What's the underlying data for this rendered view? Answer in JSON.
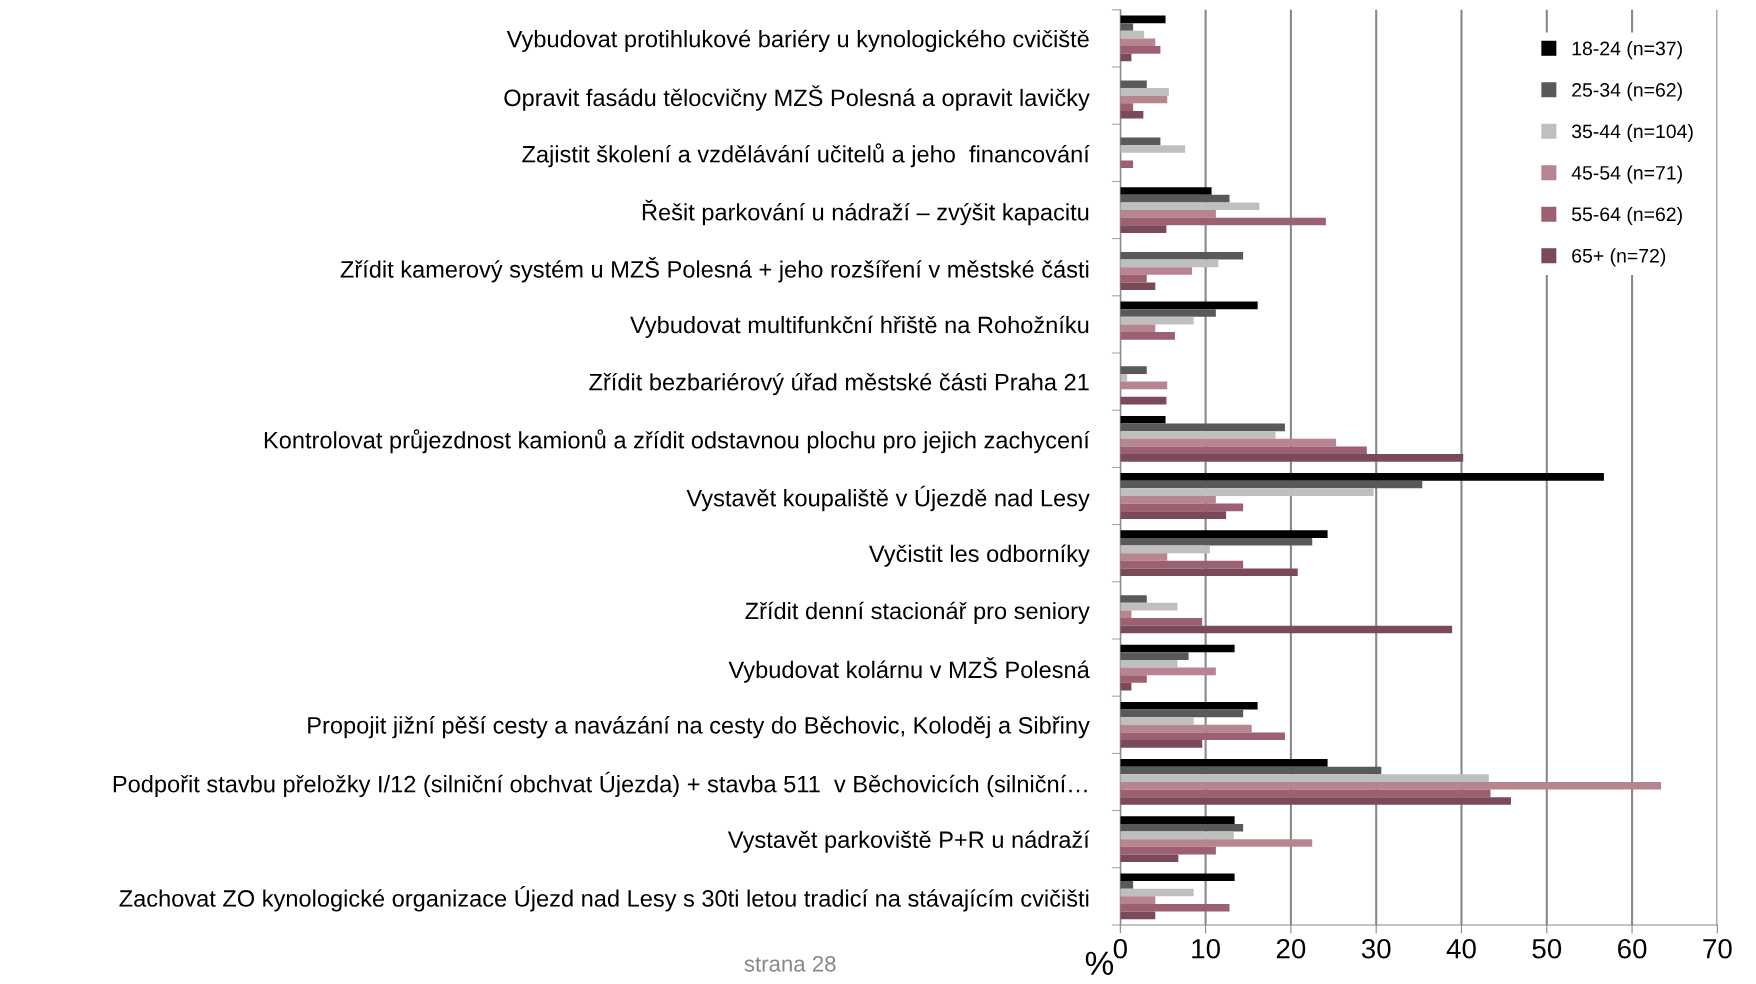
{
  "chart_data": {
    "type": "bar",
    "orientation": "horizontal",
    "xlabel": "%",
    "categories": [
      "Vybudovat protihlukové bariéry u kynologického cvičiště",
      "Opravit fasádu tělocvičny MZŠ Polesná a opravit lavičky",
      "Zajistit školení a vzdělávání učitelů a jeho  financování",
      "Řešit parkování u nádraží – zvýšit kapacitu",
      "Zřídit kamerový systém u MZŠ Polesná + jeho rozšíření v městské části",
      "Vybudovat multifunkční hřiště na Rohožníku",
      "Zřídit bezbariérový úřad městské části Praha 21",
      "Kontrolovat průjezdnost kamionů a zřídit odstavnou plochu pro jejich zachycení",
      "Vystavět koupaliště v Újezdě nad Lesy",
      "Vyčistit les odborníky",
      "Zřídit denní stacionář pro seniory",
      "Vybudovat kolárnu v MZŠ Polesná",
      "Propojit jižní pěší cesty a navázání na cesty do Běchovic, Koloděj a Sibřiny",
      "Podpořit stavbu přeložky I/12 (silniční obchvat Újezda) + stavba 511  v Běchovicích (silniční…",
      "Vystavět parkoviště P+R u nádraží",
      "Zachovat ZO kynologické organizace Újezd nad Lesy s 30ti letou tradicí na stávajícím cvičišti"
    ],
    "series": [
      {
        "name": "18-24 (n=37)",
        "color": "#000000",
        "values": [
          5.3,
          0,
          0,
          10.7,
          0,
          16.1,
          0,
          5.3,
          56.7,
          24.3,
          0,
          13.4,
          16.1,
          24.3,
          13.4,
          13.4
        ]
      },
      {
        "name": "25-34 (n=62)",
        "color": "#595959",
        "values": [
          1.5,
          3.1,
          4.7,
          12.8,
          14.4,
          11.2,
          3.1,
          19.3,
          35.4,
          22.5,
          3.1,
          8.0,
          14.4,
          30.6,
          14.4,
          1.5
        ]
      },
      {
        "name": "35-44 (n=104)",
        "color": "#bfbfbf",
        "values": [
          2.8,
          5.7,
          7.6,
          16.3,
          11.5,
          8.6,
          0.8,
          18.2,
          29.7,
          10.5,
          6.7,
          6.7,
          8.6,
          43.2,
          13.3,
          8.6
        ]
      },
      {
        "name": "45-54 (n=71)",
        "color": "#b7858f",
        "values": [
          4.1,
          5.5,
          0,
          11.2,
          8.4,
          4.1,
          5.5,
          25.3,
          11.2,
          5.5,
          1.3,
          11.2,
          15.4,
          63.4,
          22.5,
          4.1
        ]
      },
      {
        "name": "55-64 (n=62)",
        "color": "#9c6070",
        "values": [
          4.7,
          1.5,
          1.5,
          24.1,
          3.1,
          6.4,
          0,
          28.9,
          14.4,
          14.4,
          9.6,
          3.1,
          19.3,
          43.4,
          11.2,
          12.8
        ]
      },
      {
        "name": "65+ (n=72)",
        "color": "#7a4a5a",
        "values": [
          1.3,
          2.7,
          0,
          5.4,
          4.1,
          0,
          5.4,
          40.2,
          12.4,
          20.8,
          38.9,
          1.3,
          9.6,
          45.8,
          6.8,
          4.1
        ]
      }
    ],
    "xlim": [
      0,
      70
    ],
    "xticks": [
      0,
      10,
      20,
      30,
      40,
      50,
      60,
      70
    ],
    "grid": "x",
    "legend": "top right",
    "annotations": [
      "strana 28"
    ]
  }
}
